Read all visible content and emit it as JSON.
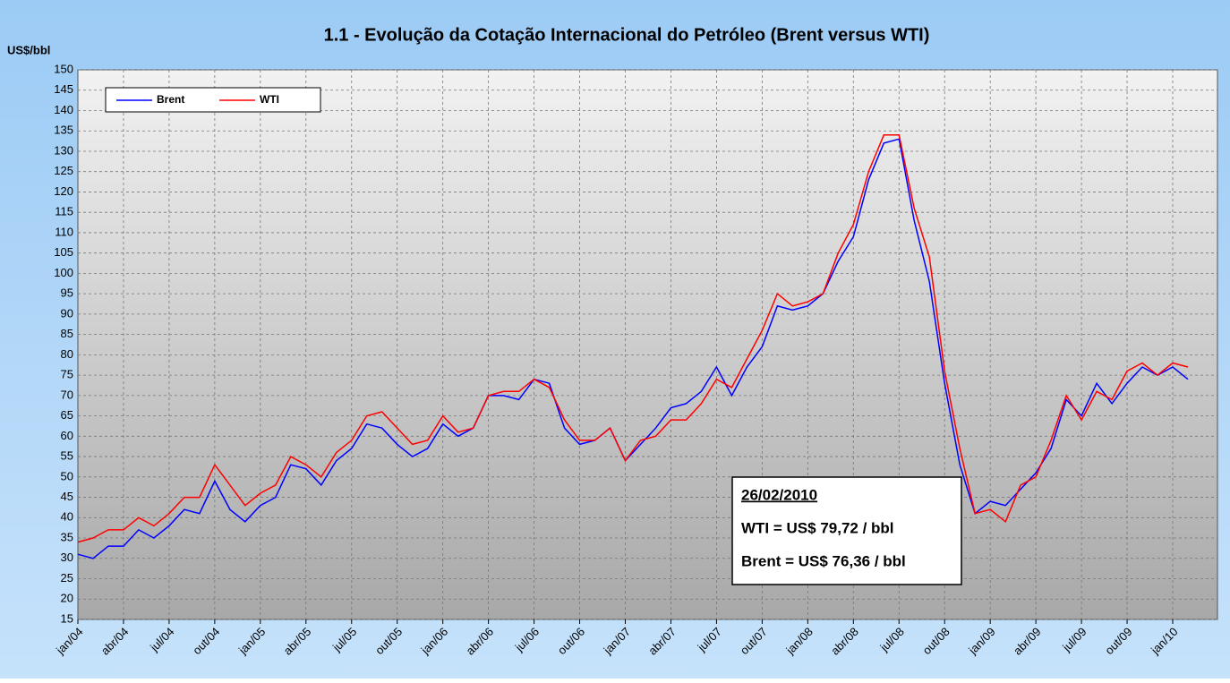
{
  "chart_data": {
    "type": "line",
    "title": "1.1 - Evolução da Cotação Internacional do Petróleo (Brent versus WTI)",
    "y_label": "US$/bbl",
    "categories": [
      "jan/04",
      null,
      null,
      "abr/04",
      null,
      null,
      "jul/04",
      null,
      null,
      "out/04",
      null,
      null,
      "jan/05",
      null,
      null,
      "abr/05",
      null,
      null,
      "jul/05",
      null,
      null,
      "out/05",
      null,
      null,
      "jan/06",
      null,
      null,
      "abr/06",
      null,
      null,
      "jul/06",
      null,
      null,
      "out/06",
      null,
      null,
      "jan/07",
      null,
      null,
      "abr/07",
      null,
      null,
      "jul/07",
      null,
      null,
      "out/07",
      null,
      null,
      "jan/08",
      null,
      null,
      "abr/08",
      null,
      null,
      "jul/08",
      null,
      null,
      "out/08",
      null,
      null,
      "jan/09",
      null,
      null,
      "abr/09",
      null,
      null,
      "jul/09",
      null,
      null,
      "out/09",
      null,
      null,
      "jan/10",
      null
    ],
    "series": [
      {
        "name": "Brent",
        "color": "#0000ff",
        "values": [
          31,
          30,
          33,
          33,
          37,
          35,
          38,
          42,
          41,
          49,
          42,
          39,
          43,
          45,
          53,
          52,
          48,
          54,
          57,
          63,
          62,
          58,
          55,
          57,
          63,
          60,
          62,
          70,
          70,
          69,
          74,
          73,
          62,
          58,
          59,
          62,
          54,
          58,
          62,
          67,
          68,
          71,
          77,
          70,
          77,
          82,
          92,
          91,
          92,
          95,
          103,
          109,
          123,
          132,
          133,
          113,
          98,
          73,
          53,
          41,
          44,
          43,
          47,
          51,
          57,
          69,
          65,
          73,
          68,
          73,
          77,
          75,
          77,
          74
        ]
      },
      {
        "name": "WTI",
        "color": "#ff0000",
        "values": [
          34,
          35,
          37,
          37,
          40,
          38,
          41,
          45,
          45,
          53,
          48,
          43,
          46,
          48,
          55,
          53,
          50,
          56,
          59,
          65,
          66,
          62,
          58,
          59,
          65,
          61,
          62,
          70,
          71,
          71,
          74,
          72,
          64,
          59,
          59,
          62,
          54,
          59,
          60,
          64,
          64,
          68,
          74,
          72,
          79,
          86,
          95,
          92,
          93,
          95,
          105,
          112,
          125,
          134,
          134,
          116,
          104,
          76,
          57,
          41,
          42,
          39,
          48,
          50,
          59,
          70,
          64,
          71,
          69,
          76,
          78,
          75,
          78,
          77
        ]
      }
    ],
    "ylim": [
      15,
      150
    ],
    "yticks": [
      15,
      20,
      25,
      30,
      35,
      40,
      45,
      50,
      55,
      60,
      65,
      70,
      75,
      80,
      85,
      90,
      95,
      100,
      105,
      110,
      115,
      120,
      125,
      130,
      135,
      140,
      145,
      150
    ],
    "grid": true,
    "legend": "top-left",
    "annotation": [
      "26/02/2010",
      "WTI = US$ 79,72 / bbl",
      "Brent = US$ 76,36 / bbl"
    ]
  }
}
